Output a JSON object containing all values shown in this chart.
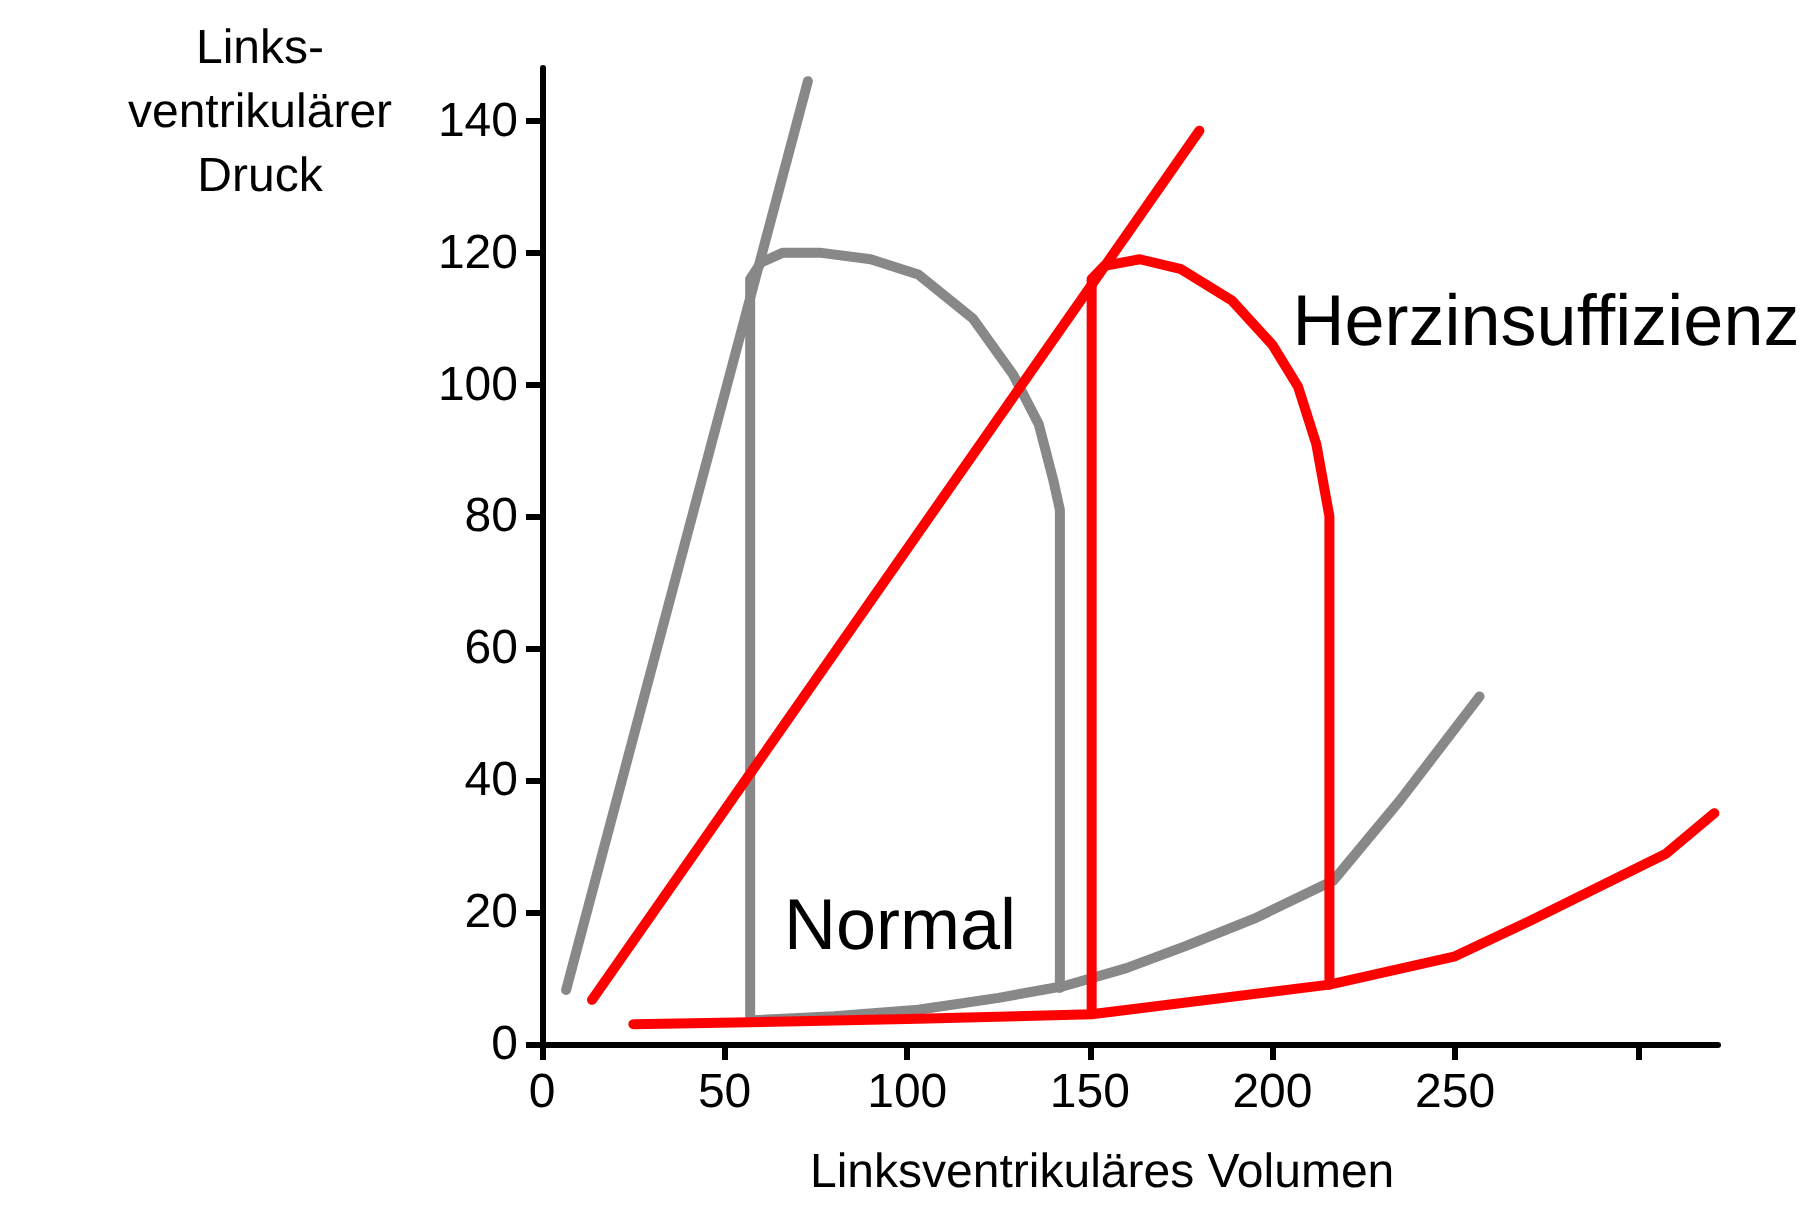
{
  "chart_data": {
    "type": "line",
    "xlabel": "Linksventrikuläres Volumen",
    "ylabel": "Links-\nventrikulärer\nDruck",
    "xlim": [
      0,
      322
    ],
    "ylim": [
      0,
      148
    ],
    "xticks": [
      0,
      50,
      100,
      150,
      200,
      250,
      {
        "value": 300,
        "label": null
      }
    ],
    "yticks": [
      0,
      20,
      40,
      60,
      80,
      100,
      120,
      140
    ],
    "marker": "none",
    "line_style": "solid",
    "series": [
      {
        "color": "#888888",
        "x": [
          6.6,
          72.8
        ],
        "values": [
          8.2,
          146
        ]
      },
      {
        "color": "#888888",
        "x": [
          57,
          57,
          60,
          66,
          76,
          90,
          103,
          118,
          129,
          136,
          140,
          141.8,
          141.8
        ],
        "values": [
          4,
          116,
          118.5,
          120,
          120,
          119,
          116.7,
          110,
          101.5,
          94,
          85.5,
          81,
          8.5
        ]
      },
      {
        "color": "#888888",
        "x": [
          57.8,
          80,
          103,
          125,
          143,
          160,
          176,
          195,
          216.7,
          235,
          256.7
        ],
        "values": [
          3.6,
          4.2,
          5.2,
          7,
          8.8,
          11.5,
          14.8,
          19,
          24.8,
          37,
          52.7
        ]
      },
      {
        "color": "#ff0000",
        "x": [
          13.7,
          180
        ],
        "values": [
          6.7,
          138.5
        ]
      },
      {
        "color": "#ff0000",
        "x": [
          150.5,
          150.5,
          154,
          163.7,
          175,
          189,
          200,
          207,
          212,
          215.6,
          215.6
        ],
        "values": [
          4.5,
          116,
          118,
          119,
          117.5,
          112.7,
          106,
          99.7,
          91,
          80,
          9
        ]
      },
      {
        "color": "#ff0000",
        "x": [
          25,
          57,
          100,
          150.5,
          215.6,
          250,
          271,
          307.6,
          321
        ],
        "values": [
          3,
          3.3,
          3.8,
          4.5,
          9,
          13.3,
          18.8,
          28.8,
          35
        ]
      }
    ],
    "annotations": [
      "Normal",
      "Herzinsuffizienz"
    ]
  }
}
